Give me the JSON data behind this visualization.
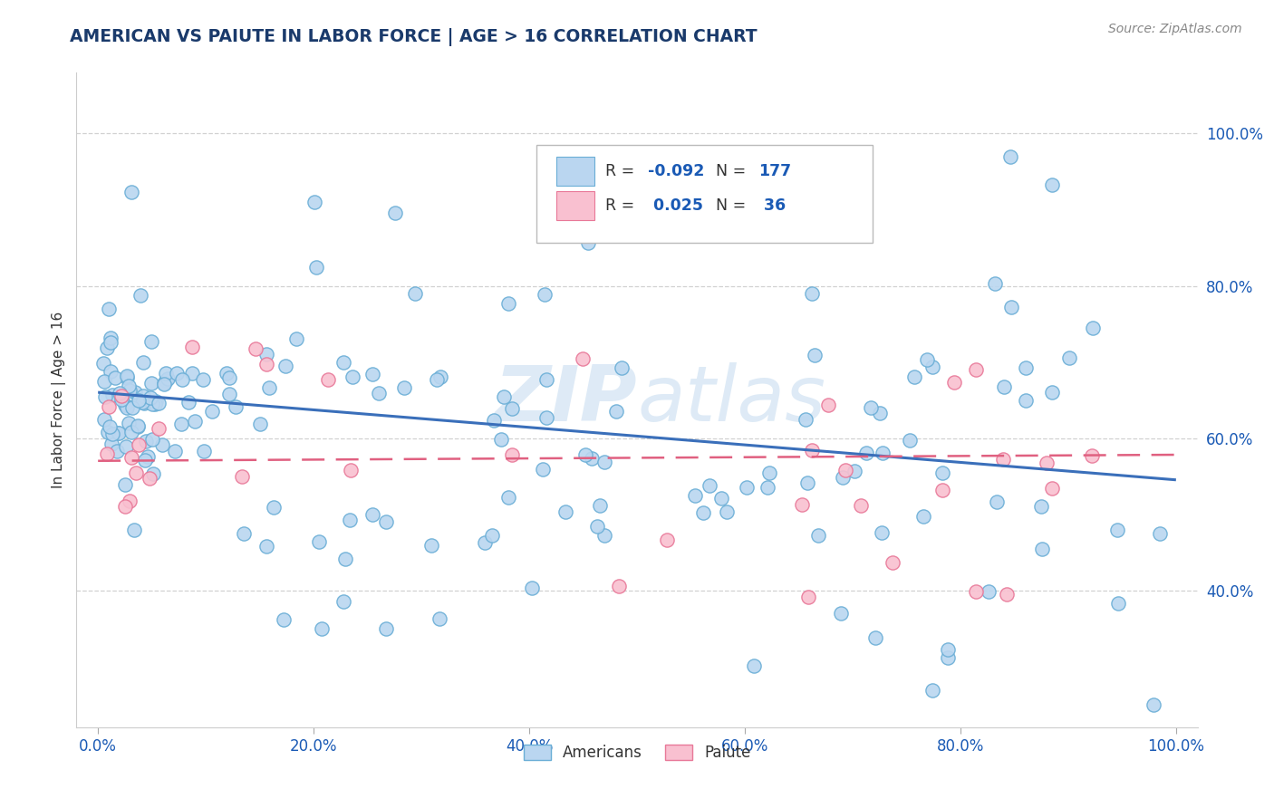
{
  "title": "AMERICAN VS PAIUTE IN LABOR FORCE | AGE > 16 CORRELATION CHART",
  "source_text": "Source: ZipAtlas.com",
  "ylabel": "In Labor Force | Age > 16",
  "xlim": [
    -0.02,
    1.02
  ],
  "ylim": [
    0.22,
    1.08
  ],
  "xticks": [
    0.0,
    0.2,
    0.4,
    0.6,
    0.8,
    1.0
  ],
  "yticks": [
    0.4,
    0.6,
    0.8,
    1.0
  ],
  "xtick_labels": [
    "0.0%",
    "20.0%",
    "40.0%",
    "60.0%",
    "80.0%",
    "100.0%"
  ],
  "ytick_labels": [
    "40.0%",
    "60.0%",
    "80.0%",
    "100.0%"
  ],
  "americans_color": "#bad6f0",
  "paiute_color": "#f9c0d0",
  "americans_edge": "#6aaed6",
  "paiute_edge": "#e87898",
  "trend_blue": "#3a6fba",
  "trend_pink": "#e06080",
  "watermark": "ZIPAtlas",
  "background_color": "#ffffff",
  "grid_color": "#cccccc",
  "title_color": "#1a3a6b",
  "axis_label_color": "#1a3a6b",
  "tick_label_color": "#1a5ab5"
}
